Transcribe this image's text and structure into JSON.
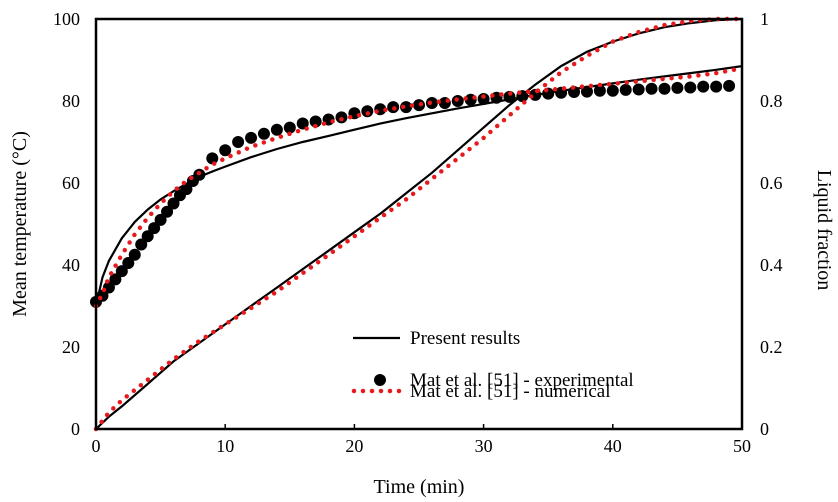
{
  "chart_data": {
    "type": "line",
    "title": "",
    "xlabel": "Time (min)",
    "ylabel": "Mean temperature (°C)",
    "y2label": "Liquid fraction",
    "xlim": [
      0,
      50
    ],
    "ylim": [
      0,
      100
    ],
    "y2lim": [
      0,
      1
    ],
    "x_ticks": [
      "0",
      "10",
      "20",
      "30",
      "40",
      "50"
    ],
    "y_ticks": [
      "0",
      "20",
      "40",
      "60",
      "80",
      "100"
    ],
    "y2_ticks": [
      "0",
      "0.2",
      "0.4",
      "0.6",
      "0.8",
      "1"
    ],
    "grid": false,
    "legend_position": "bottom-center",
    "legend": [
      {
        "label": "Present results",
        "marker": "solid-line",
        "color": "#000000"
      },
      {
        "label": "Mat et al.   [51]    - experimental",
        "marker": "filled-circle",
        "color": "#000000"
      },
      {
        "label": "Mat et al.   [51]    - numerical",
        "marker": "dotted-line",
        "color": "#e8191c"
      }
    ],
    "series": [
      {
        "name": "Present results",
        "axis": "left",
        "style": "solid",
        "color": "#000000",
        "x": [
          0,
          0.5,
          1,
          2,
          3,
          4,
          5,
          6,
          7,
          8,
          9,
          10,
          12,
          14,
          16,
          18,
          20,
          22,
          24,
          26,
          28,
          30,
          32,
          34,
          36,
          38,
          40,
          42,
          44,
          46,
          48,
          50
        ],
        "y": [
          30,
          37,
          41,
          46.5,
          50.5,
          53.5,
          56,
          58,
          59.8,
          61.5,
          62.8,
          64,
          66.3,
          68.3,
          70,
          71.5,
          73,
          74.5,
          75.8,
          77,
          78.2,
          79.3,
          80.4,
          81.5,
          82.5,
          83.4,
          84.3,
          85.2,
          86,
          86.8,
          87.6,
          88.5
        ]
      },
      {
        "name": "Present results",
        "axis": "right",
        "style": "solid",
        "color": "#000000",
        "x": [
          0,
          1,
          2,
          4,
          6,
          8,
          10,
          12,
          14,
          16,
          18,
          20,
          22,
          24,
          26,
          28,
          30,
          32,
          34,
          36,
          38,
          40,
          42,
          44,
          46,
          48,
          50
        ],
        "y": [
          0,
          0.03,
          0.055,
          0.11,
          0.165,
          0.21,
          0.255,
          0.3,
          0.345,
          0.39,
          0.435,
          0.48,
          0.525,
          0.575,
          0.625,
          0.68,
          0.735,
          0.79,
          0.84,
          0.885,
          0.92,
          0.945,
          0.965,
          0.98,
          0.99,
          0.997,
          1
        ]
      },
      {
        "name": "Mat et al.   [51]    - experimental",
        "axis": "left",
        "style": "markers",
        "color": "#000000",
        "x": [
          0,
          0.5,
          1,
          1.5,
          2,
          2.5,
          3,
          3.5,
          4,
          4.5,
          5,
          5.5,
          6,
          6.5,
          7,
          7.5,
          8,
          9,
          10,
          11,
          12,
          13,
          14,
          15,
          16,
          17,
          18,
          19,
          20,
          21,
          22,
          23,
          24,
          25,
          26,
          27,
          28,
          29,
          30,
          31,
          32,
          33,
          34,
          35,
          36,
          37,
          38,
          39,
          40,
          41,
          42,
          43,
          44,
          45,
          46,
          47,
          48,
          49
        ],
        "y": [
          31,
          32.5,
          34.5,
          36.5,
          38.5,
          40.5,
          42.5,
          45,
          47,
          49,
          51,
          53,
          55,
          57,
          58.5,
          60.5,
          62,
          66,
          68,
          70,
          71,
          72,
          73,
          73.5,
          74.5,
          75,
          75.5,
          76,
          77,
          77.5,
          78,
          78.5,
          78.5,
          79,
          79.5,
          79.5,
          80,
          80.3,
          80.5,
          80.8,
          81,
          81.2,
          81.5,
          81.8,
          82,
          82.2,
          82.3,
          82.5,
          82.5,
          82.7,
          82.8,
          83,
          83,
          83.2,
          83.3,
          83.5,
          83.5,
          83.7
        ]
      },
      {
        "name": "Mat et al.   [51]    - numerical",
        "axis": "left",
        "style": "dotted",
        "color": "#e8191c",
        "x": [
          0,
          0.5,
          1,
          2,
          3,
          4,
          5,
          6,
          7,
          8,
          9,
          10,
          12,
          14,
          16,
          18,
          20,
          22,
          24,
          26,
          28,
          30,
          32,
          34,
          36,
          38,
          40,
          42,
          44,
          46,
          48,
          50
        ],
        "y": [
          30,
          33,
          37,
          42.5,
          47.5,
          51.5,
          55,
          58,
          60.5,
          62.5,
          64.5,
          66,
          68.8,
          71,
          73,
          74.8,
          76.3,
          77.6,
          78.7,
          79.6,
          80.4,
          81.1,
          81.8,
          82.4,
          83,
          83.6,
          84.2,
          84.8,
          85.4,
          86,
          86.8,
          88
        ]
      },
      {
        "name": "Mat et al.   [51]    - numerical",
        "axis": "right",
        "style": "dotted",
        "color": "#e8191c",
        "x": [
          0,
          1,
          2,
          4,
          6,
          8,
          10,
          12,
          14,
          16,
          18,
          20,
          22,
          24,
          26,
          28,
          30,
          32,
          34,
          36,
          38,
          40,
          42,
          44,
          46,
          48,
          50
        ],
        "y": [
          0,
          0.04,
          0.07,
          0.12,
          0.17,
          0.215,
          0.255,
          0.295,
          0.335,
          0.38,
          0.425,
          0.47,
          0.515,
          0.56,
          0.61,
          0.66,
          0.71,
          0.765,
          0.82,
          0.87,
          0.91,
          0.945,
          0.968,
          0.985,
          0.995,
          1,
          1
        ]
      }
    ]
  }
}
